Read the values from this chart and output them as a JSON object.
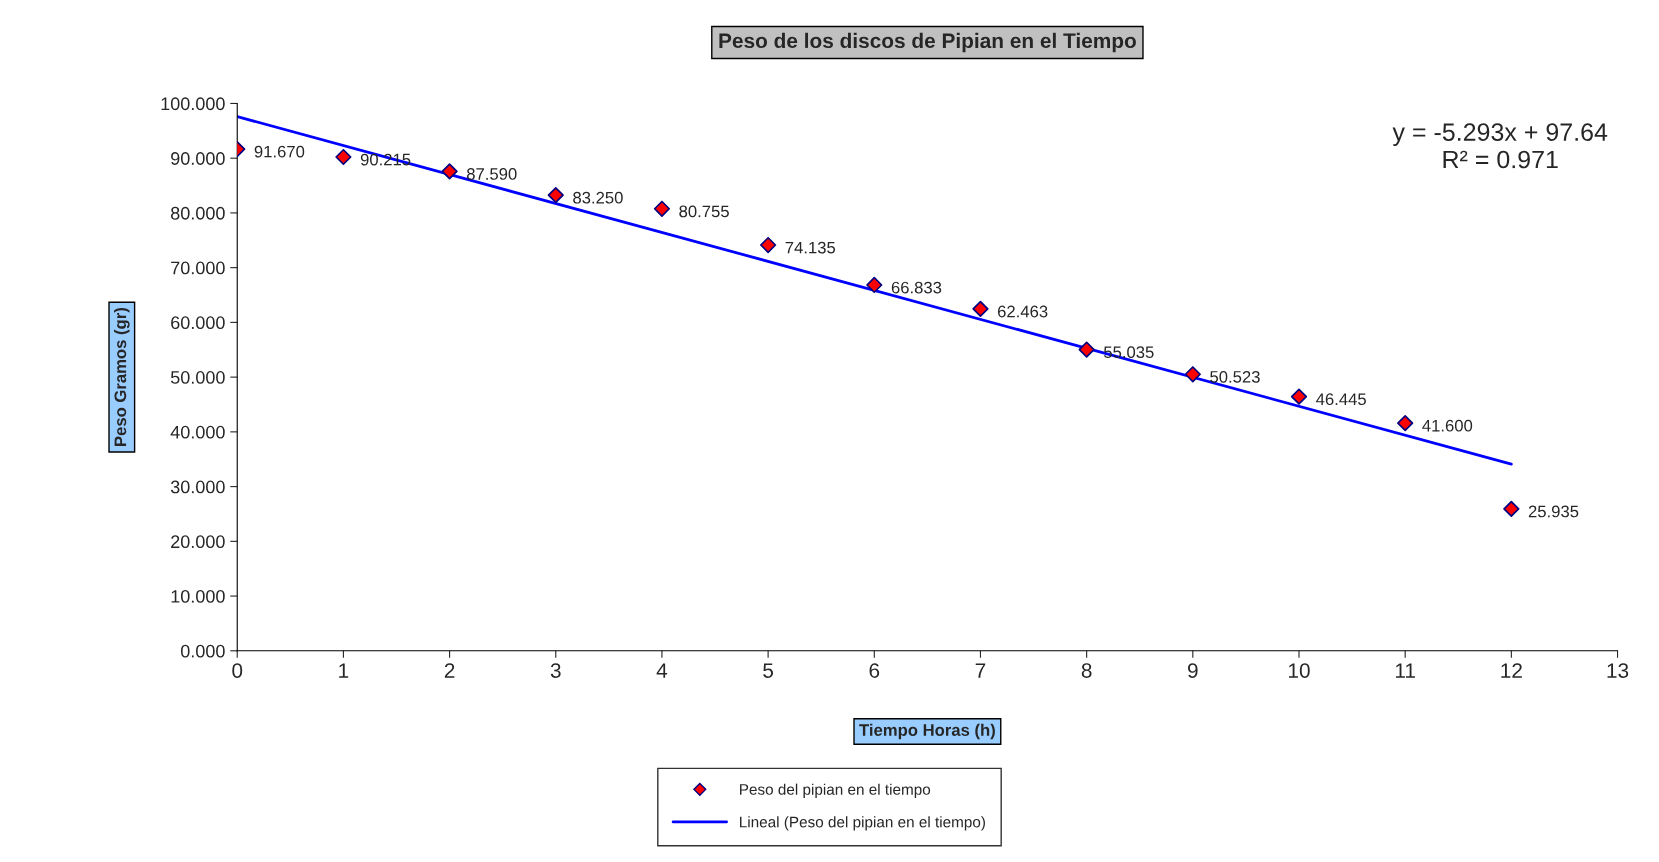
{
  "chart_data": {
    "type": "scatter",
    "title": "Peso de los discos de Pipian en el Tiempo",
    "xlabel": "Tiempo Horas (h)",
    "ylabel": "Peso Gramos (gr)",
    "x": [
      0,
      1,
      2,
      3,
      4,
      5,
      6,
      7,
      8,
      9,
      10,
      11,
      12
    ],
    "series": [
      {
        "name": "Peso del pipian en el tiempo",
        "color": "#ff0000",
        "marker": "diamond",
        "values": [
          91.67,
          90.215,
          87.59,
          83.25,
          80.755,
          74.135,
          66.833,
          62.463,
          55.035,
          50.523,
          46.445,
          41.6,
          25.935
        ],
        "value_labels": [
          "91.670",
          "90.215",
          "87.590",
          "83.250",
          "80.755",
          "74.135",
          "66.833",
          "62.463",
          "55.035",
          "50.523",
          "46.445",
          "41.600",
          "25.935"
        ]
      },
      {
        "name": "Lineal (Peso del pipian en el tiempo)",
        "type": "line",
        "color": "#0000ff",
        "line_style": "solid",
        "marker": "none",
        "x": [
          0,
          12
        ],
        "values": [
          97.6,
          34.1
        ]
      }
    ],
    "xlim": [
      0,
      13
    ],
    "xticks": [
      0,
      1,
      2,
      3,
      4,
      5,
      6,
      7,
      8,
      9,
      10,
      11,
      12,
      13
    ],
    "ylim": [
      0,
      100
    ],
    "yticks": [
      {
        "value": 0,
        "label": "0.000"
      },
      {
        "value": 10,
        "label": "10.000"
      },
      {
        "value": 20,
        "label": "20.000"
      },
      {
        "value": 30,
        "label": "30.000"
      },
      {
        "value": 40,
        "label": "40.000"
      },
      {
        "value": 50,
        "label": "50.000"
      },
      {
        "value": 60,
        "label": "60.000"
      },
      {
        "value": 70,
        "label": "70.000"
      },
      {
        "value": 80,
        "label": "80.000"
      },
      {
        "value": 90,
        "label": "90.000"
      },
      {
        "value": 100,
        "label": "100.000"
      }
    ],
    "annotations": [
      "y = -5.293x + 97.64",
      "R² = 0.971"
    ],
    "grid": false,
    "legend": "bottom"
  }
}
